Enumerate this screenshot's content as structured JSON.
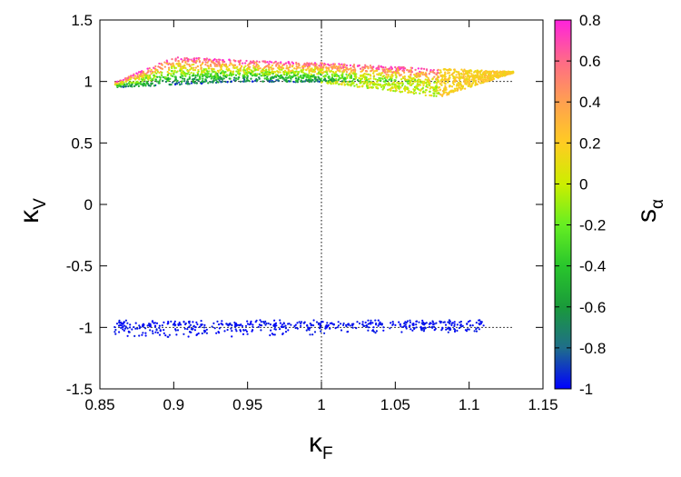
{
  "chart_data": {
    "type": "scatter",
    "title": "",
    "xlabel": {
      "main": "κ",
      "sub": "F"
    },
    "ylabel": {
      "main": "κ",
      "sub": "V"
    },
    "xlim": [
      0.85,
      1.15
    ],
    "ylim": [
      -1.5,
      1.5
    ],
    "xticks": [
      0.85,
      0.9,
      0.95,
      1,
      1.05,
      1.1,
      1.15
    ],
    "xtick_labels": [
      "0.85",
      "0.9",
      "0.95",
      "1",
      "1.05",
      "1.1",
      "1.15"
    ],
    "yticks": [
      -1.5,
      -1,
      -0.5,
      0,
      0.5,
      1,
      1.5
    ],
    "ytick_labels": [
      "-1.5",
      "-1",
      "-0.5",
      "0",
      "0.5",
      "1",
      "1.5"
    ],
    "reference_lines": {
      "horizontal": [
        1,
        -1
      ],
      "vertical": [
        1
      ],
      "style": "dotted"
    },
    "colorbar": {
      "label": {
        "main": "s",
        "sub": "α"
      },
      "range": [
        -1,
        0.8
      ],
      "ticks": [
        -1,
        -0.8,
        -0.6,
        -0.4,
        -0.2,
        0,
        0.2,
        0.4,
        0.6,
        0.8
      ],
      "tick_labels": [
        "-1",
        "-0.8",
        "-0.6",
        "-0.4",
        "-0.2",
        "0",
        "0.2",
        "0.4",
        "0.6",
        "0.8"
      ],
      "stops": [
        {
          "value": -1.0,
          "color": "#0000ff"
        },
        {
          "value": -0.8,
          "color": "#1f6e8a"
        },
        {
          "value": -0.6,
          "color": "#1a9a3a"
        },
        {
          "value": -0.4,
          "color": "#29c62c"
        },
        {
          "value": -0.2,
          "color": "#66ee22"
        },
        {
          "value": 0.0,
          "color": "#ccee00"
        },
        {
          "value": 0.2,
          "color": "#ffcc22"
        },
        {
          "value": 0.4,
          "color": "#ffa050"
        },
        {
          "value": 0.6,
          "color": "#ff6a88"
        },
        {
          "value": 0.8,
          "color": "#ff22dd"
        }
      ]
    },
    "regions": [
      {
        "name": "",
        "description_color": "s_alpha from about -0.9 to 0.8",
        "x_range": [
          0.86,
          1.13
        ],
        "upper_edge": [
          [
            0.86,
            0.99
          ],
          [
            0.9,
            1.2
          ],
          [
            0.95,
            1.17
          ],
          [
            1.0,
            1.15
          ],
          [
            1.05,
            1.12
          ],
          [
            1.13,
            1.08
          ]
        ],
        "lower_edge": [
          [
            0.86,
            0.95
          ],
          [
            0.95,
            1.0
          ],
          [
            1.0,
            0.99
          ],
          [
            1.05,
            0.92
          ],
          [
            1.08,
            0.87
          ],
          [
            1.13,
            1.07
          ]
        ],
        "point_count": 2600
      },
      {
        "name": "",
        "description_color": "s_alpha about -1",
        "x_range": [
          0.86,
          1.11
        ],
        "y_range": [
          -1.17,
          -0.87
        ],
        "point_count": 520
      }
    ]
  }
}
